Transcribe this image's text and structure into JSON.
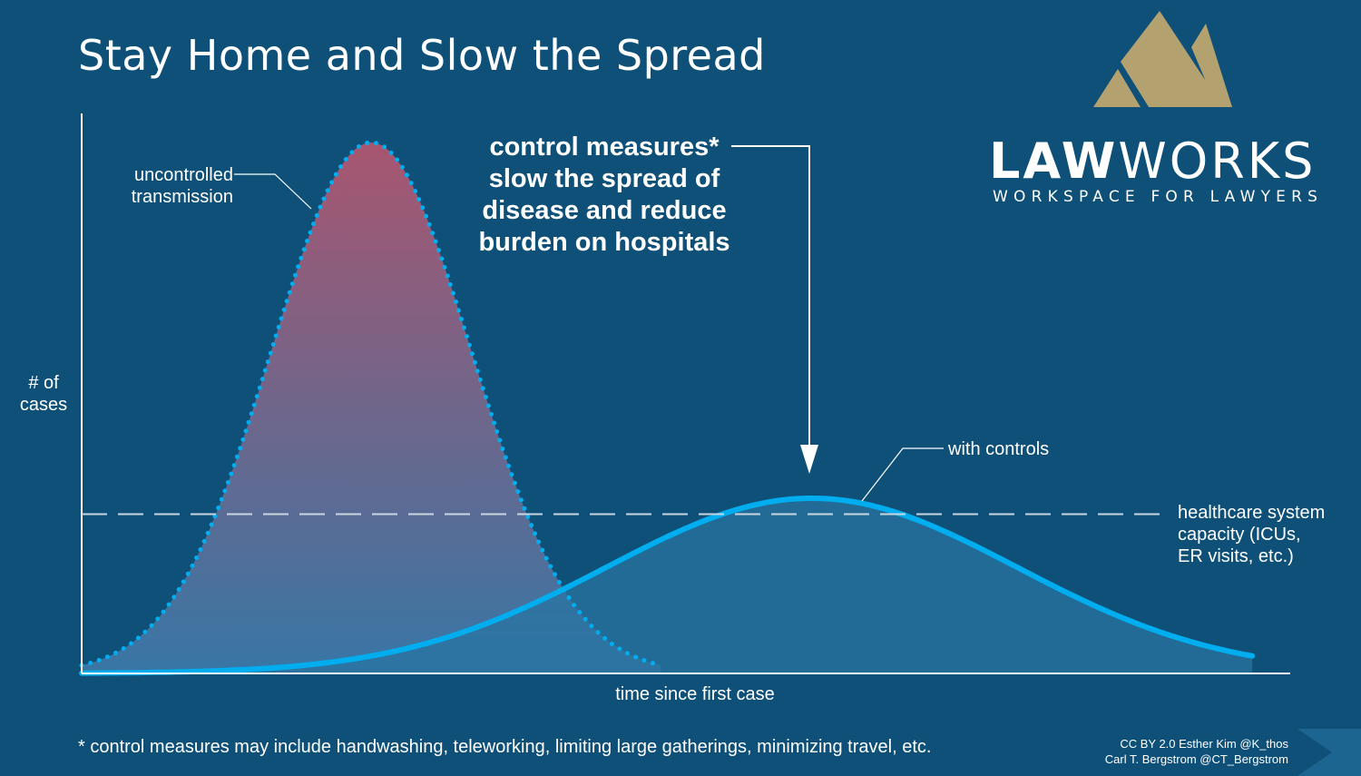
{
  "title": "Stay Home and Slow the Spread",
  "logo": {
    "name_part1": "LAW",
    "name_part2": "WORKS",
    "tagline": "WORKSPACE FOR LAWYERS",
    "gold_color": "#b4a170"
  },
  "chart_data": {
    "type": "area",
    "title": "",
    "xlabel": "time since first case",
    "ylabel": "# of cases",
    "xlim": [
      0,
      100
    ],
    "ylim": [
      0,
      100
    ],
    "grid": false,
    "series": [
      {
        "name": "uncontrolled transmission",
        "style": "dotted",
        "shape": "gaussian",
        "peak_x": 24,
        "peak_y": 100,
        "width": 8.3,
        "color": "#00aeef"
      },
      {
        "name": "with controls",
        "style": "solid",
        "shape": "gaussian",
        "peak_x": 60.5,
        "peak_y": 33,
        "width": 17,
        "color": "#00aeef"
      }
    ],
    "reference_line": {
      "label": "healthcare system capacity (ICUs, ER visits, etc.)",
      "label_lines": [
        "healthcare system",
        "capacity (ICUs,",
        "ER visits, etc.)"
      ],
      "y": 30,
      "style": "dashed"
    },
    "annotations": {
      "uncontrolled_lines": [
        "uncontrolled",
        "transmission"
      ],
      "controls_label": "with controls",
      "ylabel_lines": [
        "# of",
        "cases"
      ],
      "callout_lines": [
        "control measures*",
        "slow the spread of",
        "disease and reduce",
        "burden on hospitals"
      ]
    },
    "colors": {
      "peak_fill_top": "#b0566f",
      "fill_bottom": "#3a78a8",
      "controls_fill": "#2a74a2",
      "axis": "#ffffff"
    }
  },
  "footnote": "* control measures may include handwashing, teleworking, limiting large gatherings, minimizing travel, etc.",
  "credits": {
    "line1": "CC BY 2.0  Esther Kim  @K_thos",
    "line2": "Carl T. Bergstrom  @CT_Bergstrom"
  }
}
